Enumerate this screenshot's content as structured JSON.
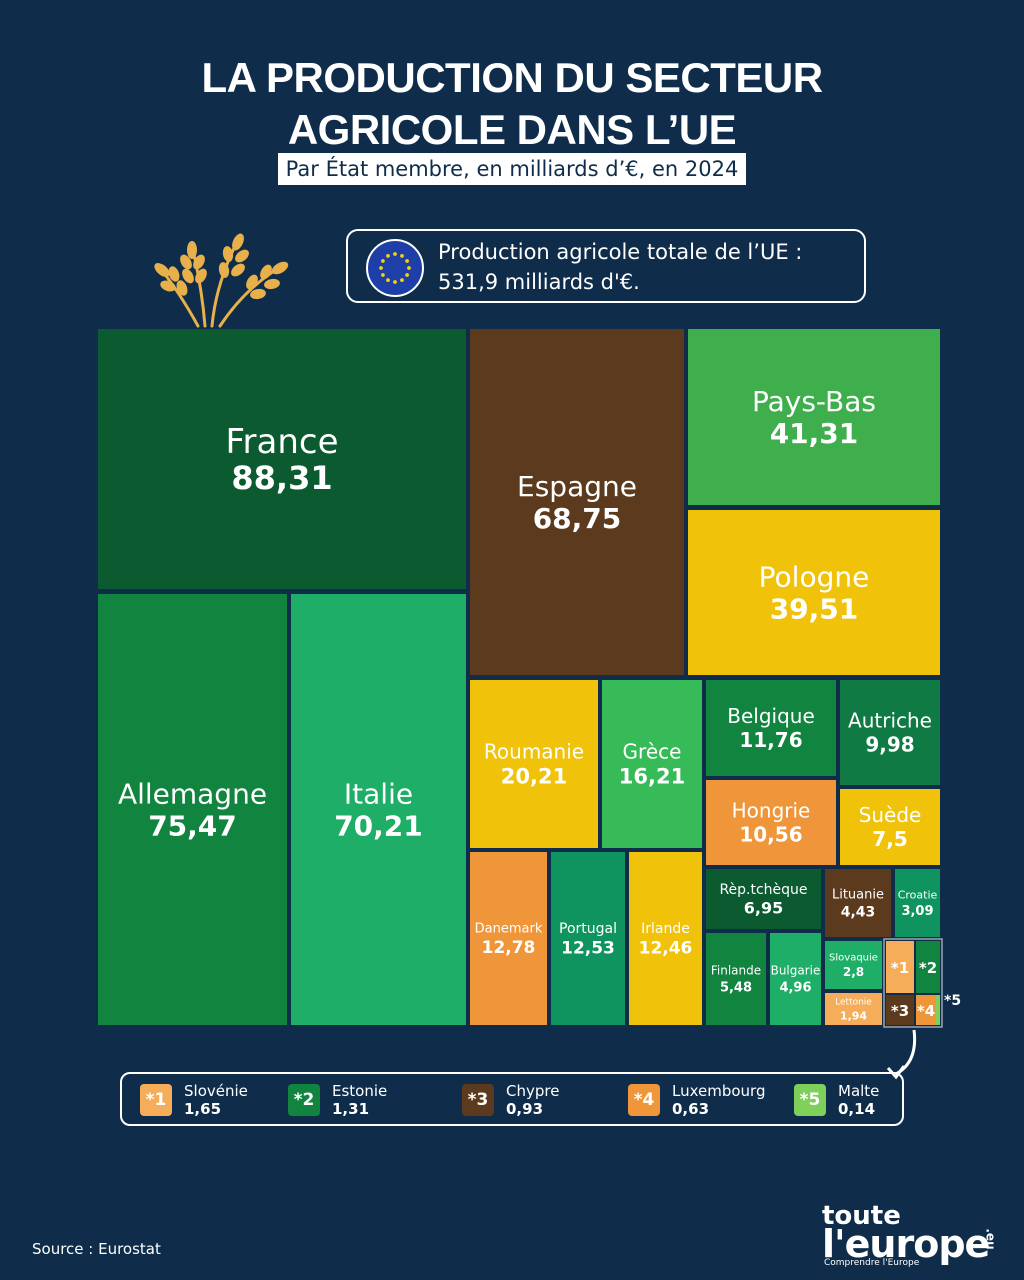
{
  "header": {
    "title_line1": "LA PRODUCTION DU SECTEUR",
    "title_line2": "AGRICOLE DANS L’UE",
    "subtitle": "Par État membre, en milliards d’€, en 2024"
  },
  "total": {
    "line1": "Production agricole totale de l’UE :",
    "line2": "531,9 milliards d'€."
  },
  "chart_data": {
    "type": "treemap",
    "unit": "milliards d’€",
    "items": [
      {
        "name": "France",
        "label": "88,31",
        "value": 88.31,
        "color": "#0b5a30"
      },
      {
        "name": "Allemagne",
        "label": "75,47",
        "value": 75.47,
        "color": "#11843f"
      },
      {
        "name": "Italie",
        "label": "70,21",
        "value": 70.21,
        "color": "#1fae68"
      },
      {
        "name": "Espagne",
        "label": "68,75",
        "value": 68.75,
        "color": "#5c3a1d"
      },
      {
        "name": "Pays-Bas",
        "label": "41,31",
        "value": 41.31,
        "color": "#3fae4d"
      },
      {
        "name": "Pologne",
        "label": "39,51",
        "value": 39.51,
        "color": "#f0c20a"
      },
      {
        "name": "Roumanie",
        "label": "20,21",
        "value": 20.21,
        "color": "#f0c20a"
      },
      {
        "name": "Grèce",
        "label": "16,21",
        "value": 16.21,
        "color": "#37bb58"
      },
      {
        "name": "Danemark",
        "label": "12,78",
        "value": 12.78,
        "color": "#f0963a"
      },
      {
        "name": "Portugal",
        "label": "12,53",
        "value": 12.53,
        "color": "#0f9460"
      },
      {
        "name": "Irlande",
        "label": "12,46",
        "value": 12.46,
        "color": "#f0c20a"
      },
      {
        "name": "Belgique",
        "label": "11,76",
        "value": 11.76,
        "color": "#11843f"
      },
      {
        "name": "Hongrie",
        "label": "10,56",
        "value": 10.56,
        "color": "#f0963a"
      },
      {
        "name": "Autriche",
        "label": "9,98",
        "value": 9.98,
        "color": "#0f7a44"
      },
      {
        "name": "Suède",
        "label": "7,5",
        "value": 7.5,
        "color": "#f0c20a"
      },
      {
        "name": "Rèp.tchèque",
        "label": "6,95",
        "value": 6.95,
        "color": "#0b5a30"
      },
      {
        "name": "Finlande",
        "label": "5,48",
        "value": 5.48,
        "color": "#11843f"
      },
      {
        "name": "Bulgarie",
        "label": "4,96",
        "value": 4.96,
        "color": "#1fae68"
      },
      {
        "name": "Lituanie",
        "label": "4,43",
        "value": 4.43,
        "color": "#5c3a1d"
      },
      {
        "name": "Croatie",
        "label": "3,09",
        "value": 3.09,
        "color": "#0f9460"
      },
      {
        "name": "Slovaquie",
        "label": "2,8",
        "value": 2.8,
        "color": "#1fae68"
      },
      {
        "name": "Lettonie",
        "label": "1,94",
        "value": 1.94,
        "color": "#f5ad5a"
      },
      {
        "name": "Slovénie",
        "label": "1,65",
        "value": 1.65,
        "color": "#f5ad5a",
        "marker": "*1"
      },
      {
        "name": "Estonie",
        "label": "1,31",
        "value": 1.31,
        "color": "#11843f",
        "marker": "*2"
      },
      {
        "name": "Chypre",
        "label": "0,93",
        "value": 0.93,
        "color": "#5c3a1d",
        "marker": "*3"
      },
      {
        "name": "Luxembourg",
        "label": "0,63",
        "value": 0.63,
        "color": "#f0963a",
        "marker": "*4"
      },
      {
        "name": "Malte",
        "label": "0,14",
        "value": 0.14,
        "color": "#7fd05a",
        "marker": "*5"
      }
    ]
  },
  "legend": [
    {
      "marker": "*1",
      "name": "Slovénie",
      "value": "1,65",
      "color": "#f5ad5a"
    },
    {
      "marker": "*2",
      "name": "Estonie",
      "value": "1,31",
      "color": "#11843f"
    },
    {
      "marker": "*3",
      "name": "Chypre",
      "value": "0,93",
      "color": "#5c3a1d"
    },
    {
      "marker": "*4",
      "name": "Luxembourg",
      "value": "0,63",
      "color": "#f0963a"
    },
    {
      "marker": "*5",
      "name": "Malte",
      "value": "0,14",
      "color": "#7fd05a"
    }
  ],
  "footer": {
    "source": "Source : Eurostat",
    "logo_line1": "toute",
    "logo_line2": "l'europe",
    "logo_tld": ".eu",
    "logo_tagline": "Comprendre l'Europe"
  }
}
